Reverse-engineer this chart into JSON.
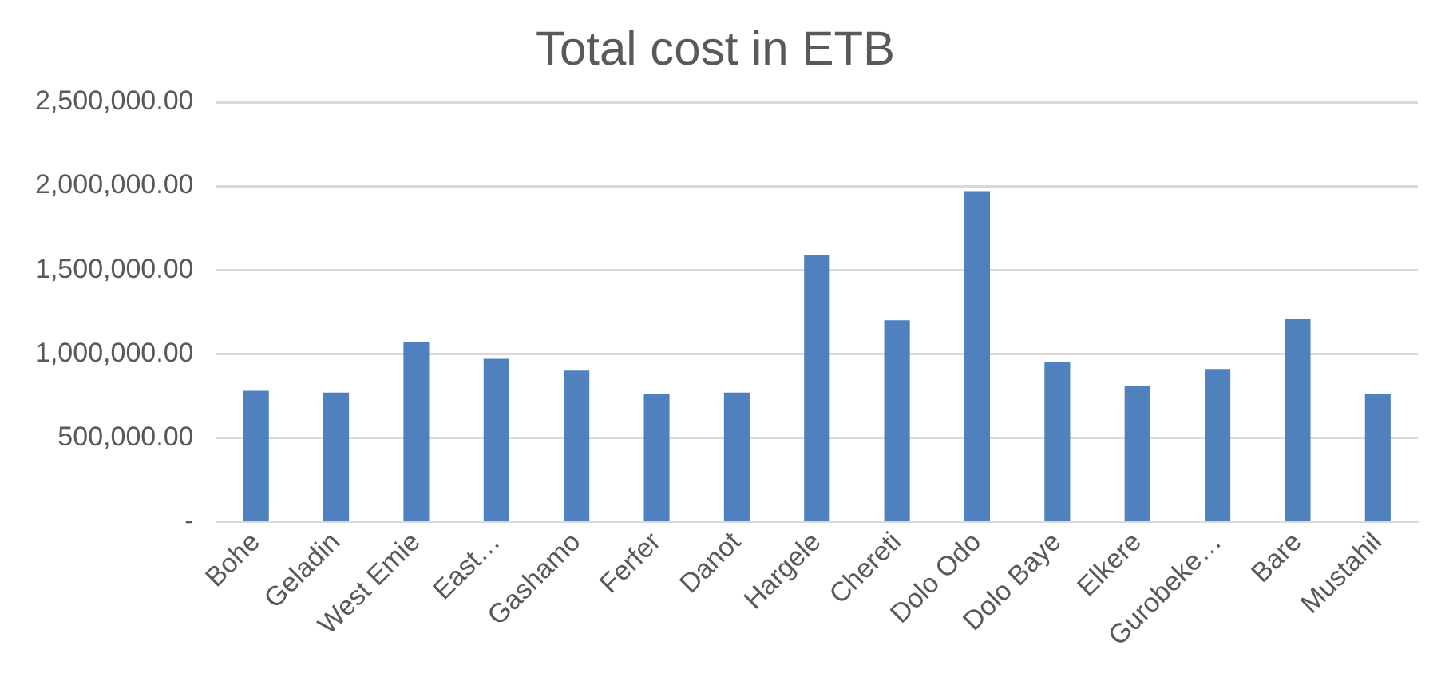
{
  "chart_data": {
    "type": "bar",
    "title": "Total cost in ETB",
    "categories": [
      "Bohe",
      "Geladin",
      "West Emie",
      "East…",
      "Gashamo",
      "Ferfer",
      "Danot",
      "Hargele",
      "Chereti",
      "Dolo Odo",
      "Dolo Baye",
      "Elkere",
      "Gurobeke…",
      "Bare",
      "Mustahil"
    ],
    "values": [
      780000,
      770000,
      1070000,
      970000,
      900000,
      760000,
      770000,
      1590000,
      1200000,
      1970000,
      950000,
      810000,
      910000,
      1210000,
      760000
    ],
    "color": "#4f81bd",
    "ylim": [
      0,
      2500000
    ],
    "yticks": [
      {
        "value": 0,
        "label": "-"
      },
      {
        "value": 500000,
        "label": "500,000.00"
      },
      {
        "value": 1000000,
        "label": "1,000,000.00"
      },
      {
        "value": 1500000,
        "label": "1,500,000.00"
      },
      {
        "value": 2000000,
        "label": "2,000,000.00"
      },
      {
        "value": 2500000,
        "label": "2,500,000.00"
      }
    ],
    "grid": "y"
  }
}
